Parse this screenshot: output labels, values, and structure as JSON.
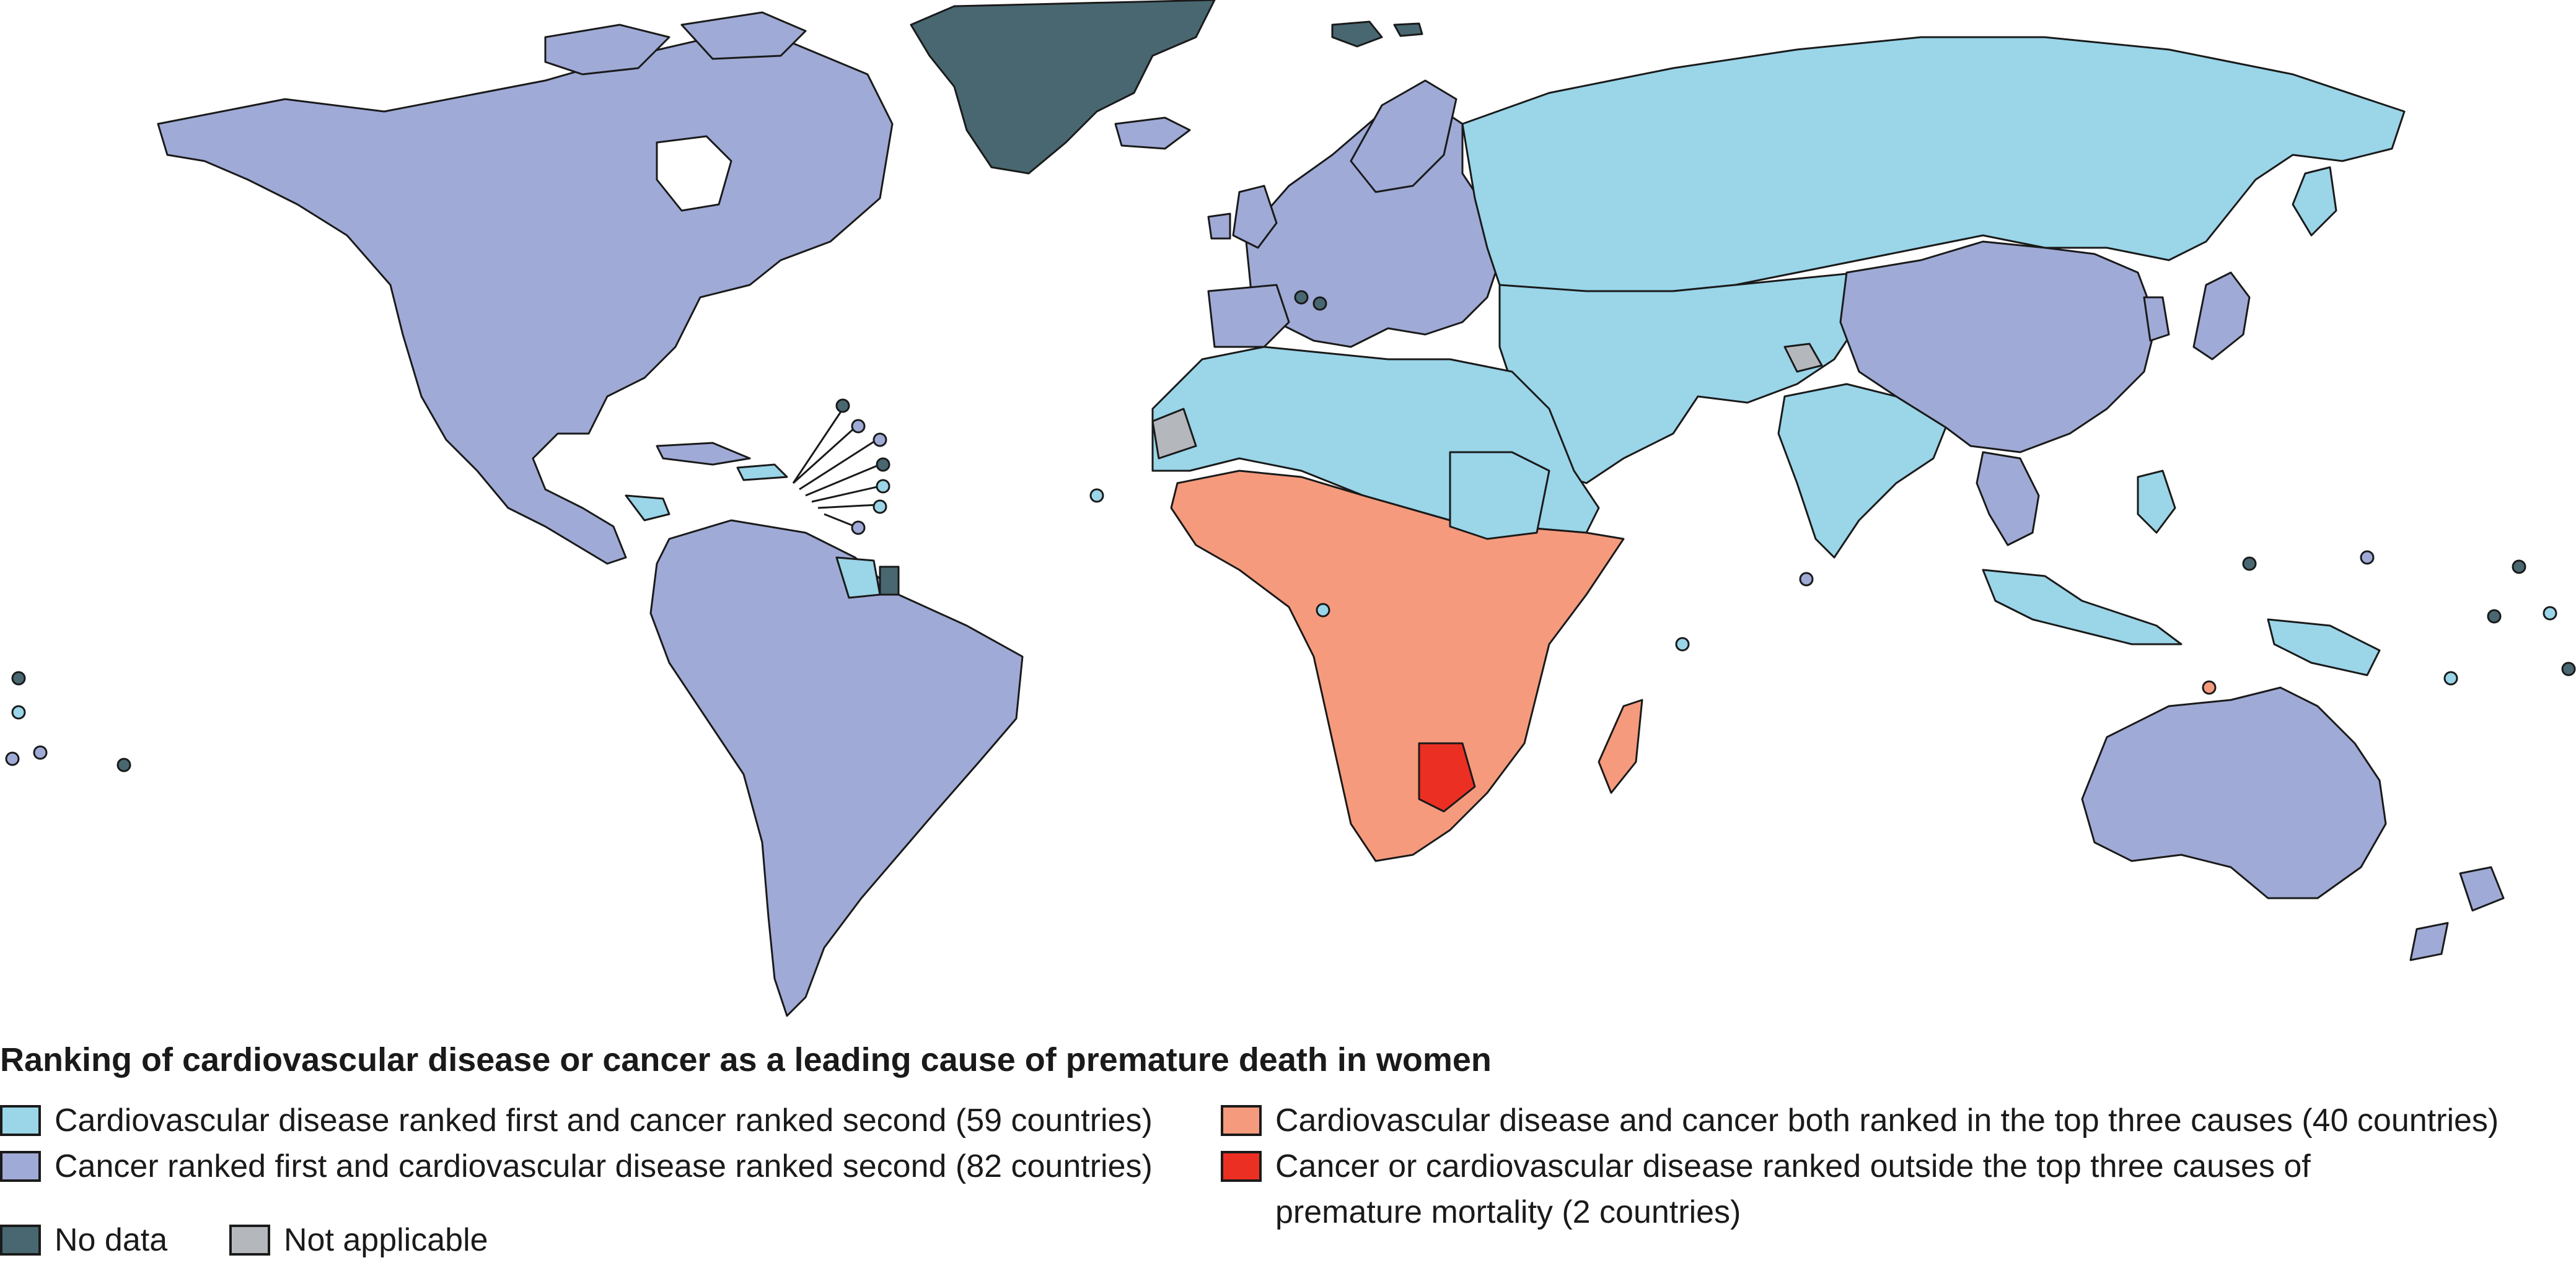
{
  "colors": {
    "cvd_first": "#9ad5e8",
    "cancer_first": "#9faad6",
    "both_top3": "#f59a7c",
    "outside_top3": "#ec2f23",
    "no_data": "#486771",
    "not_applicable": "#b4b8bd",
    "water": "#ffffff",
    "border": "#1a1a1a"
  },
  "legend": {
    "title": "Ranking of cardiovascular disease or cancer as a leading cause of premature death in women",
    "items": [
      {
        "key": "cvd_first",
        "label": "Cardiovascular disease ranked first and cancer ranked second (59 countries)"
      },
      {
        "key": "cancer_first",
        "label": "Cancer ranked first and cardiovascular disease ranked second (82 countries)"
      },
      {
        "key": "both_top3",
        "label": "Cardiovascular disease and cancer both ranked in the top three causes (40 countries)"
      },
      {
        "key": "outside_top3",
        "label_line1": "Cancer or cardiovascular disease ranked outside the top three causes of",
        "label_line2": "premature mortality (2 countries)"
      },
      {
        "key": "no_data",
        "label": "No data"
      },
      {
        "key": "not_applicable",
        "label": "Not applicable"
      }
    ]
  }
}
